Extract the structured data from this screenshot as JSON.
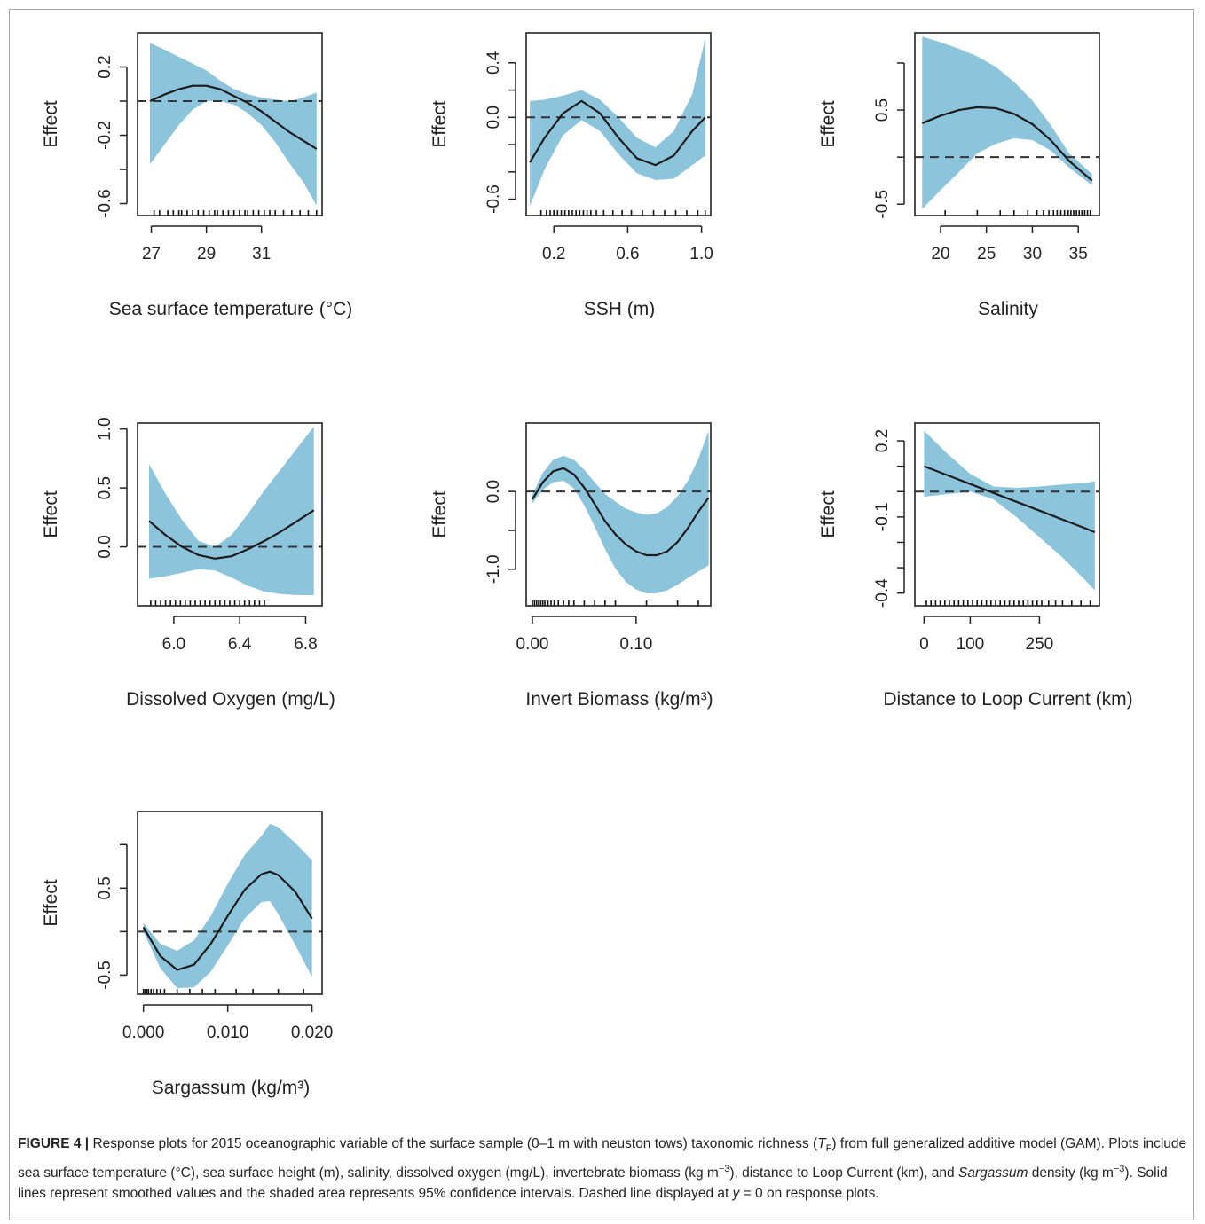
{
  "colors": {
    "band": "#8cc4dc",
    "line": "#1c1c1c",
    "axis": "#222222",
    "zero_line": "#333333",
    "frame": "#a9a9a9"
  },
  "chart_data": [
    {
      "type": "line",
      "xlabel": "Sea surface temperature (°C)",
      "ylabel": "Effect",
      "xticks": [
        27,
        29,
        31
      ],
      "xtick_labels": [
        "27",
        "29",
        "31"
      ],
      "yticks": [
        -0.6,
        -0.4,
        -0.2,
        0.0,
        0.2
      ],
      "ytick_labels": [
        "-0.6",
        "",
        "-0.2",
        "",
        "0.2"
      ],
      "xlim": [
        26.5,
        33.2
      ],
      "ylim": [
        -0.67,
        0.4
      ],
      "x": [
        26.95,
        27.5,
        28.0,
        28.5,
        29.0,
        29.5,
        30.0,
        30.5,
        31.0,
        31.5,
        32.0,
        32.5,
        33.0
      ],
      "y": [
        0.0,
        0.04,
        0.07,
        0.09,
        0.09,
        0.07,
        0.03,
        -0.01,
        -0.06,
        -0.12,
        -0.18,
        -0.23,
        -0.28
      ],
      "lower": [
        -0.37,
        -0.25,
        -0.14,
        -0.05,
        0.0,
        0.0,
        -0.02,
        -0.07,
        -0.14,
        -0.24,
        -0.36,
        -0.47,
        -0.61
      ],
      "upper": [
        0.34,
        0.3,
        0.26,
        0.22,
        0.18,
        0.12,
        0.07,
        0.04,
        0.02,
        0.01,
        0.0,
        0.02,
        0.05
      ],
      "rug": [
        27.1,
        27.3,
        27.6,
        27.8,
        28.0,
        28.1,
        28.3,
        28.5,
        28.7,
        28.9,
        29.1,
        29.3,
        29.4,
        29.6,
        29.8,
        30.0,
        30.2,
        30.4,
        30.5,
        30.7,
        30.9,
        31.1,
        31.3,
        31.5,
        31.8,
        32.1,
        32.4,
        32.7,
        33.0
      ]
    },
    {
      "type": "line",
      "xlabel": "SSH (m)",
      "ylabel": "Effect",
      "xticks": [
        0.2,
        0.6,
        1.0
      ],
      "xtick_labels": [
        "0.2",
        "0.6",
        "1.0"
      ],
      "yticks": [
        -0.6,
        -0.4,
        -0.2,
        0.0,
        0.2,
        0.4
      ],
      "ytick_labels": [
        "-0.6",
        "",
        "",
        "0.0",
        "",
        "0.4"
      ],
      "xlim": [
        0.05,
        1.05
      ],
      "ylim": [
        -0.72,
        0.62
      ],
      "x": [
        0.07,
        0.15,
        0.25,
        0.35,
        0.45,
        0.55,
        0.65,
        0.75,
        0.85,
        0.95,
        1.02
      ],
      "y": [
        -0.33,
        -0.15,
        0.03,
        0.12,
        0.03,
        -0.15,
        -0.3,
        -0.35,
        -0.28,
        -0.1,
        0.0
      ],
      "lower": [
        -0.65,
        -0.38,
        -0.13,
        -0.02,
        -0.1,
        -0.27,
        -0.41,
        -0.46,
        -0.45,
        -0.35,
        -0.28
      ],
      "upper": [
        0.12,
        0.13,
        0.16,
        0.2,
        0.13,
        0.0,
        -0.15,
        -0.22,
        -0.1,
        0.17,
        0.58
      ],
      "rug": [
        0.13,
        0.16,
        0.18,
        0.2,
        0.22,
        0.24,
        0.26,
        0.28,
        0.3,
        0.32,
        0.34,
        0.36,
        0.38,
        0.4,
        0.43,
        0.47,
        0.52,
        0.57,
        0.62,
        0.68,
        0.74,
        0.8,
        0.86,
        0.92,
        0.98,
        1.02
      ]
    },
    {
      "type": "line",
      "xlabel": "Salinity",
      "ylabel": "Effect",
      "xticks": [
        20,
        25,
        30,
        35
      ],
      "xtick_labels": [
        "20",
        "25",
        "30",
        "35"
      ],
      "yticks": [
        -0.5,
        0.0,
        0.5,
        1.0
      ],
      "ytick_labels": [
        "-0.5",
        "",
        "0.5",
        ""
      ],
      "xlim": [
        17.2,
        37.3
      ],
      "ylim": [
        -0.62,
        1.32
      ],
      "x": [
        18.0,
        20.0,
        22.0,
        24.0,
        26.0,
        28.0,
        30.0,
        32.0,
        34.0,
        36.5
      ],
      "y": [
        0.36,
        0.44,
        0.5,
        0.53,
        0.52,
        0.46,
        0.35,
        0.18,
        -0.04,
        -0.25
      ],
      "lower": [
        -0.55,
        -0.35,
        -0.16,
        0.04,
        0.14,
        0.2,
        0.18,
        0.07,
        -0.11,
        -0.3
      ],
      "upper": [
        1.28,
        1.22,
        1.15,
        1.07,
        0.96,
        0.8,
        0.6,
        0.34,
        0.04,
        -0.18
      ],
      "rug": [
        20.5,
        24.0,
        26.5,
        28.0,
        29.5,
        30.5,
        31.2,
        31.8,
        32.3,
        32.7,
        33.1,
        33.5,
        33.9,
        34.2,
        34.5,
        34.8,
        35.1,
        35.4,
        35.7,
        36.0,
        36.3
      ]
    },
    {
      "type": "line",
      "xlabel": "Dissolved Oxygen (mg/L)",
      "ylabel": "Effect",
      "xticks": [
        6.0,
        6.4,
        6.8
      ],
      "xtick_labels": [
        "6.0",
        "6.4",
        "6.8"
      ],
      "yticks": [
        0.0,
        0.5,
        1.0
      ],
      "ytick_labels": [
        "0.0",
        "0.5",
        "1.0"
      ],
      "xlim": [
        5.78,
        6.9
      ],
      "ylim": [
        -0.5,
        1.05
      ],
      "x": [
        5.85,
        5.95,
        6.05,
        6.15,
        6.25,
        6.35,
        6.45,
        6.55,
        6.65,
        6.75,
        6.85
      ],
      "y": [
        0.22,
        0.1,
        0.0,
        -0.07,
        -0.1,
        -0.08,
        -0.02,
        0.05,
        0.13,
        0.22,
        0.31
      ],
      "lower": [
        -0.27,
        -0.25,
        -0.22,
        -0.19,
        -0.2,
        -0.26,
        -0.33,
        -0.38,
        -0.4,
        -0.41,
        -0.41
      ],
      "upper": [
        0.7,
        0.45,
        0.23,
        0.05,
        0.0,
        0.1,
        0.28,
        0.48,
        0.66,
        0.84,
        1.02
      ],
      "rug": [
        5.86,
        5.89,
        5.92,
        5.95,
        5.98,
        6.01,
        6.04,
        6.07,
        6.1,
        6.13,
        6.16,
        6.19,
        6.22,
        6.25,
        6.28,
        6.31,
        6.34,
        6.37,
        6.4,
        6.43,
        6.46,
        6.49,
        6.52,
        6.55
      ]
    },
    {
      "type": "line",
      "xlabel": "Invert Biomass (kg/m³)",
      "ylabel": "Effect",
      "xticks": [
        0.0,
        0.1
      ],
      "xtick_labels": [
        "0.00",
        "0.10"
      ],
      "yticks": [
        -1.0,
        -0.5,
        0.0
      ],
      "ytick_labels": [
        "-1.0",
        "",
        "0.0"
      ],
      "xlim": [
        -0.006,
        0.172
      ],
      "ylim": [
        -1.47,
        0.88
      ],
      "x": [
        0.0,
        0.01,
        0.02,
        0.03,
        0.04,
        0.05,
        0.06,
        0.07,
        0.08,
        0.09,
        0.1,
        0.11,
        0.12,
        0.13,
        0.14,
        0.15,
        0.16,
        0.17
      ],
      "y": [
        -0.1,
        0.12,
        0.26,
        0.3,
        0.22,
        0.05,
        -0.16,
        -0.38,
        -0.55,
        -0.68,
        -0.77,
        -0.82,
        -0.82,
        -0.77,
        -0.65,
        -0.47,
        -0.26,
        -0.08
      ],
      "lower": [
        -0.15,
        0.02,
        0.12,
        0.14,
        0.04,
        -0.18,
        -0.45,
        -0.74,
        -0.99,
        -1.16,
        -1.26,
        -1.31,
        -1.31,
        -1.27,
        -1.2,
        -1.11,
        -1.03,
        -0.95
      ],
      "upper": [
        -0.04,
        0.24,
        0.41,
        0.46,
        0.41,
        0.28,
        0.12,
        -0.03,
        -0.13,
        -0.22,
        -0.27,
        -0.3,
        -0.28,
        -0.2,
        -0.06,
        0.14,
        0.42,
        0.78
      ],
      "rug": [
        0.0,
        0.002,
        0.004,
        0.006,
        0.008,
        0.01,
        0.012,
        0.015,
        0.018,
        0.021,
        0.025,
        0.03,
        0.035,
        0.04,
        0.05,
        0.06,
        0.07,
        0.08,
        0.11,
        0.14,
        0.16
      ]
    },
    {
      "type": "line",
      "xlabel": "Distance to Loop Current (km)",
      "ylabel": "Effect",
      "xticks": [
        0,
        100,
        250
      ],
      "xtick_labels": [
        "0",
        "100",
        "250"
      ],
      "yticks": [
        -0.4,
        -0.3,
        -0.2,
        -0.1,
        0.0,
        0.1,
        0.2
      ],
      "ytick_labels": [
        "-0.4",
        "",
        "",
        "-0.1",
        "",
        "",
        "0.2"
      ],
      "xlim": [
        -20,
        380
      ],
      "ylim": [
        -0.45,
        0.27
      ],
      "x": [
        0,
        50,
        100,
        150,
        200,
        250,
        300,
        350,
        370
      ],
      "y": [
        0.1,
        0.065,
        0.03,
        -0.005,
        -0.04,
        -0.075,
        -0.11,
        -0.145,
        -0.16
      ],
      "lower": [
        -0.02,
        -0.01,
        0.0,
        -0.03,
        -0.1,
        -0.18,
        -0.26,
        -0.35,
        -0.39
      ],
      "upper": [
        0.24,
        0.15,
        0.07,
        0.02,
        0.015,
        0.02,
        0.028,
        0.035,
        0.04
      ],
      "rug": [
        5,
        15,
        25,
        35,
        45,
        55,
        65,
        75,
        85,
        95,
        105,
        115,
        125,
        135,
        145,
        155,
        165,
        175,
        185,
        195,
        205,
        215,
        225,
        235,
        245,
        255,
        270,
        285,
        300,
        320,
        340,
        360
      ]
    },
    {
      "type": "line",
      "xlabel": "Sargassum (kg/m³)",
      "ylabel": "Effect",
      "xticks": [
        0.0,
        0.01,
        0.02
      ],
      "xtick_labels": [
        "0.000",
        "0.010",
        "0.020"
      ],
      "yticks": [
        -0.5,
        0.0,
        0.5,
        1.0
      ],
      "ytick_labels": [
        "-0.5",
        "",
        "0.5",
        ""
      ],
      "xlim": [
        -0.0007,
        0.0212
      ],
      "ylim": [
        -0.72,
        1.38
      ],
      "x": [
        0.0,
        0.002,
        0.004,
        0.006,
        0.008,
        0.01,
        0.012,
        0.014,
        0.015,
        0.016,
        0.018,
        0.02
      ],
      "y": [
        0.05,
        -0.28,
        -0.44,
        -0.38,
        -0.14,
        0.18,
        0.48,
        0.66,
        0.69,
        0.65,
        0.46,
        0.15
      ],
      "lower": [
        0.0,
        -0.42,
        -0.65,
        -0.64,
        -0.46,
        -0.16,
        0.15,
        0.34,
        0.35,
        0.2,
        -0.15,
        -0.52
      ],
      "upper": [
        0.1,
        -0.14,
        -0.22,
        -0.1,
        0.18,
        0.55,
        0.88,
        1.1,
        1.24,
        1.2,
        1.02,
        0.82
      ],
      "rug": [
        0.0,
        0.0002,
        0.0004,
        0.0006,
        0.0009,
        0.0012,
        0.0016,
        0.002,
        0.0025,
        0.004,
        0.0055,
        0.007,
        0.0085,
        0.011,
        0.013,
        0.016,
        0.019
      ]
    }
  ],
  "caption": {
    "label": "FIGURE 4 |",
    "t1": " Response plots for 2015 oceanographic variable of the surface sample (0–1 m with neuston tows) taxonomic richness (",
    "t_sym": "T",
    "t_sub": "F",
    "t2": ") from full generalized additive model (GAM). Plots include sea surface temperature (°C), sea surface height (m), salinity, dissolved oxygen (mg/L), invertebrate biomass (kg m",
    "t_exp1": "−3",
    "t3": "), distance to Loop Current (km), and ",
    "t_ital": "Sargassum",
    "t4": " density (kg m",
    "t_exp2": "−3",
    "t5": "). Solid lines represent smoothed values and the shaded area represents 95% confidence intervals. Dashed line displayed at ",
    "t_y": "y",
    "t6": " = 0 on response plots."
  }
}
